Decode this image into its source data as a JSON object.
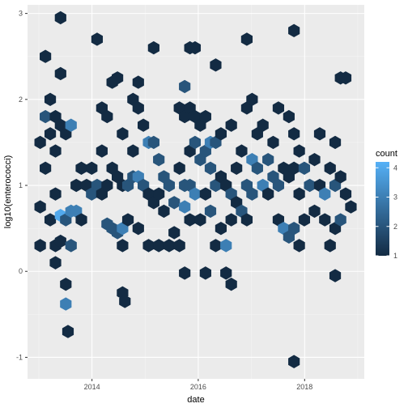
{
  "chart_data": {
    "type": "heatmap",
    "geom": "hexbin",
    "xlabel": "date",
    "ylabel": "log10(enterococci)",
    "x_axis": {
      "type": "date",
      "range": [
        "2012-10-15",
        "2019-02-15"
      ],
      "ticks": [
        "2014",
        "2016",
        "2018"
      ],
      "minor_ticks": [
        "2013",
        "2015",
        "2017",
        "2019"
      ]
    },
    "y_axis": {
      "range": [
        -1.25,
        3.1
      ],
      "ticks": [
        -1,
        0,
        1,
        2,
        3
      ],
      "minor_ticks": [
        -0.5,
        0.5,
        1.5,
        2.5
      ]
    },
    "grid": true,
    "panel_background": "#ebebeb",
    "legend": {
      "title": "count",
      "position": "right",
      "min": 1,
      "max": 4.2,
      "ticks": [
        1,
        2,
        3,
        4
      ],
      "low_color": "#132b43",
      "high_color": "#56b1f7"
    },
    "bins": [
      {
        "x": "2013-01-10",
        "y": 0.3,
        "count": 1
      },
      {
        "x": "2013-01-10",
        "y": 0.75,
        "count": 1
      },
      {
        "x": "2013-01-10",
        "y": 1.5,
        "count": 1
      },
      {
        "x": "2013-02-15",
        "y": 2.5,
        "count": 1
      },
      {
        "x": "2013-02-15",
        "y": 1.8,
        "count": 2
      },
      {
        "x": "2013-02-15",
        "y": 1.2,
        "count": 1
      },
      {
        "x": "2013-03-20",
        "y": 2.0,
        "count": 1
      },
      {
        "x": "2013-03-20",
        "y": 1.6,
        "count": 1
      },
      {
        "x": "2013-03-20",
        "y": 0.6,
        "count": 1
      },
      {
        "x": "2013-04-25",
        "y": 1.8,
        "count": 1
      },
      {
        "x": "2013-04-25",
        "y": 1.4,
        "count": 1
      },
      {
        "x": "2013-04-25",
        "y": 0.9,
        "count": 1
      },
      {
        "x": "2013-04-25",
        "y": 0.3,
        "count": 1
      },
      {
        "x": "2013-04-25",
        "y": 0.1,
        "count": 1
      },
      {
        "x": "2013-05-30",
        "y": 2.95,
        "count": 1
      },
      {
        "x": "2013-05-30",
        "y": 2.3,
        "count": 1
      },
      {
        "x": "2013-05-30",
        "y": 1.7,
        "count": 1
      },
      {
        "x": "2013-05-30",
        "y": 0.65,
        "count": 4
      },
      {
        "x": "2013-05-30",
        "y": 0.35,
        "count": 1
      },
      {
        "x": "2013-07-05",
        "y": 1.6,
        "count": 1
      },
      {
        "x": "2013-07-05",
        "y": 0.6,
        "count": 2
      },
      {
        "x": "2013-07-05",
        "y": -0.15,
        "count": 1
      },
      {
        "x": "2013-07-05",
        "y": -0.38,
        "count": 3
      },
      {
        "x": "2013-07-20",
        "y": -0.7,
        "count": 1
      },
      {
        "x": "2013-08-10",
        "y": 1.7,
        "count": 3
      },
      {
        "x": "2013-08-10",
        "y": 0.7,
        "count": 3
      },
      {
        "x": "2013-08-10",
        "y": 0.3,
        "count": 2
      },
      {
        "x": "2013-09-15",
        "y": 1.0,
        "count": 1
      },
      {
        "x": "2013-09-15",
        "y": 0.7,
        "count": 3
      },
      {
        "x": "2013-10-20",
        "y": 1.2,
        "count": 1
      },
      {
        "x": "2013-10-20",
        "y": 0.6,
        "count": 1
      },
      {
        "x": "2013-11-25",
        "y": 1.0,
        "count": 1
      },
      {
        "x": "2013-12-30",
        "y": 1.2,
        "count": 1
      },
      {
        "x": "2013-12-30",
        "y": 0.9,
        "count": 2
      },
      {
        "x": "2014-02-05",
        "y": 2.7,
        "count": 1
      },
      {
        "x": "2014-02-05",
        "y": 1.0,
        "count": 2
      },
      {
        "x": "2014-03-10",
        "y": 1.9,
        "count": 1
      },
      {
        "x": "2014-03-10",
        "y": 1.4,
        "count": 1
      },
      {
        "x": "2014-03-10",
        "y": 0.9,
        "count": 1
      },
      {
        "x": "2014-04-15",
        "y": 1.8,
        "count": 1
      },
      {
        "x": "2014-04-15",
        "y": 1.0,
        "count": 1
      },
      {
        "x": "2014-04-15",
        "y": 0.55,
        "count": 2
      },
      {
        "x": "2014-05-20",
        "y": 2.2,
        "count": 1
      },
      {
        "x": "2014-05-20",
        "y": 1.2,
        "count": 1
      },
      {
        "x": "2014-05-20",
        "y": 0.5,
        "count": 2
      },
      {
        "x": "2014-06-25",
        "y": 2.25,
        "count": 1
      },
      {
        "x": "2014-06-25",
        "y": 1.1,
        "count": 1
      },
      {
        "x": "2014-06-25",
        "y": 0.45,
        "count": 2
      },
      {
        "x": "2014-07-30",
        "y": 1.6,
        "count": 1
      },
      {
        "x": "2014-07-30",
        "y": 1.0,
        "count": 1
      },
      {
        "x": "2014-07-30",
        "y": 0.5,
        "count": 3
      },
      {
        "x": "2014-07-30",
        "y": 0.3,
        "count": 1
      },
      {
        "x": "2014-07-30",
        "y": -0.25,
        "count": 1
      },
      {
        "x": "2014-08-15",
        "y": -0.35,
        "count": 1
      },
      {
        "x": "2014-09-05",
        "y": 1.0,
        "count": 2
      },
      {
        "x": "2014-09-05",
        "y": 0.6,
        "count": 1
      },
      {
        "x": "2014-10-10",
        "y": 2.0,
        "count": 1
      },
      {
        "x": "2014-10-10",
        "y": 1.4,
        "count": 1
      },
      {
        "x": "2014-10-10",
        "y": 1.1,
        "count": 2
      },
      {
        "x": "2014-11-15",
        "y": 2.2,
        "count": 1
      },
      {
        "x": "2014-11-15",
        "y": 1.9,
        "count": 1
      },
      {
        "x": "2014-11-15",
        "y": 1.1,
        "count": 3
      },
      {
        "x": "2014-11-15",
        "y": 0.5,
        "count": 1
      },
      {
        "x": "2014-12-20",
        "y": 1.7,
        "count": 1
      },
      {
        "x": "2014-12-20",
        "y": 1.0,
        "count": 2
      },
      {
        "x": "2015-01-25",
        "y": 1.5,
        "count": 3
      },
      {
        "x": "2015-01-25",
        "y": 0.9,
        "count": 1
      },
      {
        "x": "2015-01-25",
        "y": 0.3,
        "count": 1
      },
      {
        "x": "2015-03-01",
        "y": 2.6,
        "count": 1
      },
      {
        "x": "2015-03-01",
        "y": 1.5,
        "count": 2
      },
      {
        "x": "2015-03-01",
        "y": 0.8,
        "count": 1
      },
      {
        "x": "2015-04-05",
        "y": 1.3,
        "count": 2
      },
      {
        "x": "2015-04-05",
        "y": 0.9,
        "count": 1
      },
      {
        "x": "2015-04-05",
        "y": 0.3,
        "count": 1
      },
      {
        "x": "2015-05-10",
        "y": 1.1,
        "count": 2
      },
      {
        "x": "2015-05-10",
        "y": 0.7,
        "count": 1
      },
      {
        "x": "2015-06-15",
        "y": 1.0,
        "count": 2
      },
      {
        "x": "2015-06-15",
        "y": 0.3,
        "count": 1
      },
      {
        "x": "2015-07-20",
        "y": 0.8,
        "count": 2
      },
      {
        "x": "2015-07-20",
        "y": 0.45,
        "count": 1
      },
      {
        "x": "2015-08-25",
        "y": 1.9,
        "count": 1
      },
      {
        "x": "2015-08-25",
        "y": 1.2,
        "count": 1
      },
      {
        "x": "2015-08-25",
        "y": 0.3,
        "count": 1
      },
      {
        "x": "2015-09-30",
        "y": 2.15,
        "count": 2
      },
      {
        "x": "2015-09-30",
        "y": 1.8,
        "count": 1
      },
      {
        "x": "2015-09-30",
        "y": 1.0,
        "count": 2
      },
      {
        "x": "2015-09-30",
        "y": 0.75,
        "count": 3
      },
      {
        "x": "2015-09-30",
        "y": -0.02,
        "count": 1
      },
      {
        "x": "2015-11-05",
        "y": 2.6,
        "count": 1
      },
      {
        "x": "2015-11-05",
        "y": 1.9,
        "count": 1
      },
      {
        "x": "2015-11-05",
        "y": 1.4,
        "count": 1
      },
      {
        "x": "2015-11-05",
        "y": 1.0,
        "count": 2
      },
      {
        "x": "2015-11-05",
        "y": 0.6,
        "count": 1
      },
      {
        "x": "2015-12-10",
        "y": 2.6,
        "count": 1
      },
      {
        "x": "2015-12-10",
        "y": 1.8,
        "count": 1
      },
      {
        "x": "2015-12-10",
        "y": 1.5,
        "count": 2
      },
      {
        "x": "2015-12-10",
        "y": 0.9,
        "count": 3
      },
      {
        "x": "2016-01-15",
        "y": 1.7,
        "count": 1
      },
      {
        "x": "2016-01-15",
        "y": 1.3,
        "count": 2
      },
      {
        "x": "2016-01-15",
        "y": 0.6,
        "count": 1
      },
      {
        "x": "2016-02-20",
        "y": 1.8,
        "count": 1
      },
      {
        "x": "2016-02-20",
        "y": 1.4,
        "count": 2
      },
      {
        "x": "2016-02-20",
        "y": 0.9,
        "count": 1
      },
      {
        "x": "2016-02-20",
        "y": -0.02,
        "count": 1
      },
      {
        "x": "2016-03-25",
        "y": 1.5,
        "count": 3
      },
      {
        "x": "2016-03-25",
        "y": 1.2,
        "count": 2
      },
      {
        "x": "2016-03-25",
        "y": 0.7,
        "count": 2
      },
      {
        "x": "2016-04-30",
        "y": 2.4,
        "count": 1
      },
      {
        "x": "2016-04-30",
        "y": 1.5,
        "count": 2
      },
      {
        "x": "2016-04-30",
        "y": 1.0,
        "count": 2
      },
      {
        "x": "2016-04-30",
        "y": 0.3,
        "count": 1
      },
      {
        "x": "2016-06-05",
        "y": 1.6,
        "count": 1
      },
      {
        "x": "2016-06-05",
        "y": 1.1,
        "count": 1
      },
      {
        "x": "2016-06-05",
        "y": 0.5,
        "count": 1
      },
      {
        "x": "2016-07-10",
        "y": 1.0,
        "count": 1
      },
      {
        "x": "2016-07-10",
        "y": 0.3,
        "count": 3
      },
      {
        "x": "2016-07-10",
        "y": -0.02,
        "count": 1
      },
      {
        "x": "2016-08-15",
        "y": 1.7,
        "count": 1
      },
      {
        "x": "2016-08-15",
        "y": 0.9,
        "count": 2
      },
      {
        "x": "2016-08-15",
        "y": 0.6,
        "count": 1
      },
      {
        "x": "2016-08-15",
        "y": -0.15,
        "count": 1
      },
      {
        "x": "2016-09-20",
        "y": 1.2,
        "count": 1
      },
      {
        "x": "2016-09-20",
        "y": 0.8,
        "count": 1
      },
      {
        "x": "2016-10-25",
        "y": 1.4,
        "count": 1
      },
      {
        "x": "2016-10-25",
        "y": 0.7,
        "count": 2
      },
      {
        "x": "2016-11-30",
        "y": 2.7,
        "count": 1
      },
      {
        "x": "2016-11-30",
        "y": 1.9,
        "count": 1
      },
      {
        "x": "2016-11-30",
        "y": 1.0,
        "count": 2
      },
      {
        "x": "2016-11-30",
        "y": 0.6,
        "count": 1
      },
      {
        "x": "2017-01-05",
        "y": 2.0,
        "count": 1
      },
      {
        "x": "2017-01-05",
        "y": 1.3,
        "count": 3
      },
      {
        "x": "2017-01-05",
        "y": 0.9,
        "count": 2
      },
      {
        "x": "2017-02-10",
        "y": 1.6,
        "count": 1
      },
      {
        "x": "2017-02-10",
        "y": 1.2,
        "count": 2
      },
      {
        "x": "2017-03-20",
        "y": 1.7,
        "count": 1
      },
      {
        "x": "2017-03-20",
        "y": 1.0,
        "count": 3
      },
      {
        "x": "2017-04-25",
        "y": 1.3,
        "count": 2
      },
      {
        "x": "2017-04-25",
        "y": 0.9,
        "count": 1
      },
      {
        "x": "2017-05-30",
        "y": 1.5,
        "count": 1
      },
      {
        "x": "2017-05-30",
        "y": 1.1,
        "count": 2
      },
      {
        "x": "2017-07-05",
        "y": 1.9,
        "count": 1
      },
      {
        "x": "2017-07-05",
        "y": 1.0,
        "count": 2
      },
      {
        "x": "2017-07-05",
        "y": 0.6,
        "count": 1
      },
      {
        "x": "2017-08-10",
        "y": 1.2,
        "count": 1
      },
      {
        "x": "2017-08-10",
        "y": 0.5,
        "count": 3
      },
      {
        "x": "2017-09-15",
        "y": 1.8,
        "count": 1
      },
      {
        "x": "2017-09-15",
        "y": 1.1,
        "count": 1
      },
      {
        "x": "2017-09-15",
        "y": 0.4,
        "count": 2
      },
      {
        "x": "2017-10-20",
        "y": 2.8,
        "count": 1
      },
      {
        "x": "2017-10-20",
        "y": 1.6,
        "count": 1
      },
      {
        "x": "2017-10-20",
        "y": 1.2,
        "count": 1
      },
      {
        "x": "2017-10-20",
        "y": 0.5,
        "count": 2
      },
      {
        "x": "2017-10-20",
        "y": -1.05,
        "count": 1
      },
      {
        "x": "2017-11-25",
        "y": 1.4,
        "count": 1
      },
      {
        "x": "2017-11-25",
        "y": 0.9,
        "count": 1
      },
      {
        "x": "2017-11-25",
        "y": 0.3,
        "count": 1
      },
      {
        "x": "2017-12-30",
        "y": 1.2,
        "count": 2
      },
      {
        "x": "2017-12-30",
        "y": 0.6,
        "count": 1
      },
      {
        "x": "2018-02-05",
        "y": 1.0,
        "count": 2
      },
      {
        "x": "2018-03-10",
        "y": 1.3,
        "count": 1
      },
      {
        "x": "2018-03-10",
        "y": 0.7,
        "count": 1
      },
      {
        "x": "2018-04-15",
        "y": 1.6,
        "count": 1
      },
      {
        "x": "2018-04-15",
        "y": 1.0,
        "count": 1
      },
      {
        "x": "2018-05-20",
        "y": 0.9,
        "count": 3
      },
      {
        "x": "2018-05-20",
        "y": 0.6,
        "count": 1
      },
      {
        "x": "2018-06-25",
        "y": 1.2,
        "count": 1
      },
      {
        "x": "2018-06-25",
        "y": 0.3,
        "count": 1
      },
      {
        "x": "2018-07-30",
        "y": 1.5,
        "count": 1
      },
      {
        "x": "2018-07-30",
        "y": 1.0,
        "count": 2
      },
      {
        "x": "2018-07-30",
        "y": 0.5,
        "count": 1
      },
      {
        "x": "2018-07-30",
        "y": -0.05,
        "count": 1
      },
      {
        "x": "2018-09-05",
        "y": 2.25,
        "count": 1
      },
      {
        "x": "2018-09-05",
        "y": 1.1,
        "count": 1
      },
      {
        "x": "2018-09-05",
        "y": 0.6,
        "count": 2
      },
      {
        "x": "2018-10-10",
        "y": 2.25,
        "count": 1
      },
      {
        "x": "2018-10-10",
        "y": 0.9,
        "count": 1
      },
      {
        "x": "2018-11-15",
        "y": 0.75,
        "count": 1
      }
    ]
  }
}
